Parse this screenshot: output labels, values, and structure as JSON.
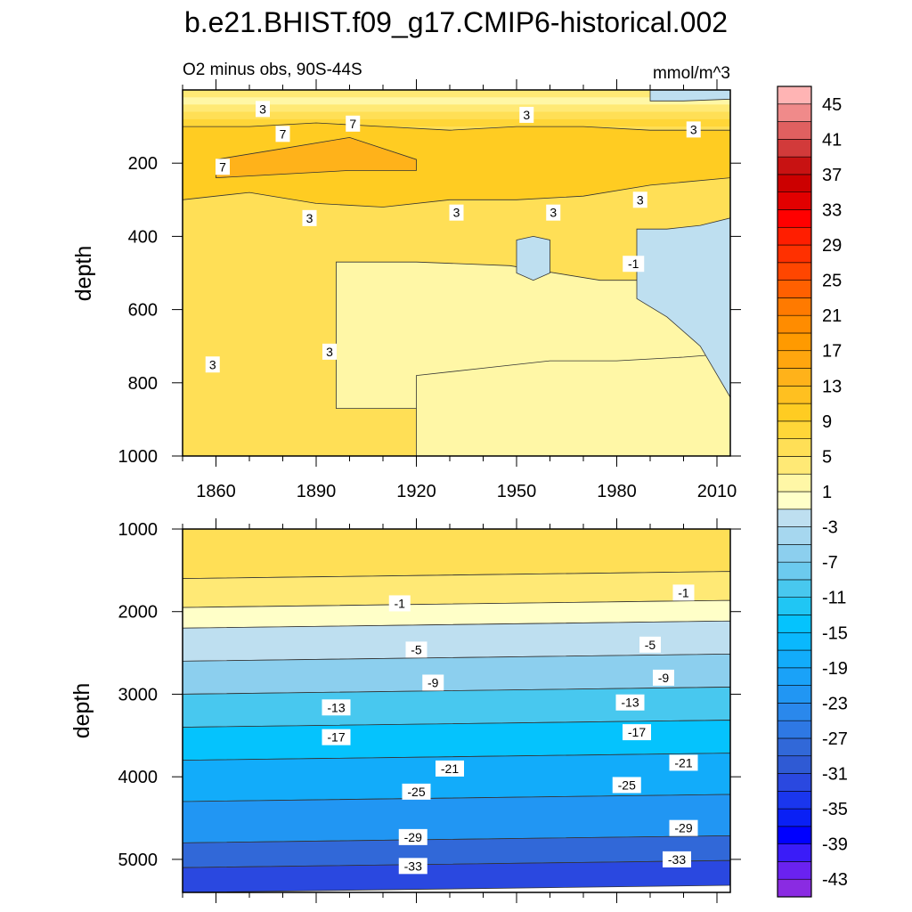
{
  "chart_data": [
    {
      "type": "contour",
      "panel": "upper",
      "title": "b.e21.BHIST.f09_g17.CMIP6-historical.002",
      "subtitle_left": "O2 minus obs, 90S-44S",
      "subtitle_right": "mmol/m^3",
      "ylabel": "depth",
      "xlim": [
        1850,
        2014
      ],
      "ylim": [
        1000,
        0
      ],
      "x_ticks": [
        1860,
        1890,
        1920,
        1950,
        1980,
        2010
      ],
      "y_ticks": [
        200,
        400,
        600,
        800,
        1000
      ],
      "background_level": 5,
      "regions": [
        {
          "level": 1,
          "x": [
            1896,
            1920,
            1948,
            1975,
            2000,
            2014
          ],
          "y_top": [
            470,
            470,
            480,
            520,
            520,
            520
          ],
          "y_bottom": [
            870,
            870,
            870,
            870,
            870,
            1000
          ]
        },
        {
          "level": 1,
          "x": [
            1920,
            1940,
            1960,
            1980,
            2000,
            2014
          ],
          "y_top": [
            780,
            760,
            740,
            740,
            730,
            720
          ],
          "y_bottom": [
            1000,
            1000,
            1000,
            1000,
            1000,
            1000
          ]
        },
        {
          "level": -3,
          "x": [
            1986,
            1995,
            2005,
            2014
          ],
          "y_top": [
            380,
            380,
            370,
            350
          ],
          "y_bottom": [
            570,
            620,
            700,
            840
          ]
        },
        {
          "level": -3,
          "x": [
            1950,
            1955,
            1960
          ],
          "y_top": [
            410,
            400,
            410
          ],
          "y_bottom": [
            500,
            520,
            500
          ]
        },
        {
          "level": -3,
          "x": [
            1990,
            2000,
            2014
          ],
          "y_top": [
            0,
            0,
            0
          ],
          "y_bottom": [
            30,
            30,
            25
          ]
        },
        {
          "level": 9,
          "x": [
            1850,
            1870,
            1890,
            1910,
            1930,
            1950,
            1970,
            1990,
            2014
          ],
          "y_top": [
            100,
            100,
            90,
            100,
            110,
            100,
            100,
            110,
            110
          ],
          "y_bottom": [
            300,
            280,
            310,
            320,
            300,
            300,
            290,
            260,
            240
          ]
        },
        {
          "level": 13,
          "x": [
            1860,
            1880,
            1900,
            1920
          ],
          "y_top": [
            190,
            160,
            130,
            190
          ],
          "y_bottom": [
            240,
            230,
            220,
            220
          ]
        }
      ],
      "contour_labels": [
        {
          "value": "3",
          "x": 1874,
          "y": 52
        },
        {
          "value": "3",
          "x": 1953,
          "y": 68
        },
        {
          "value": "7",
          "x": 1901,
          "y": 92
        },
        {
          "value": "3",
          "x": 2003,
          "y": 108
        },
        {
          "value": "7",
          "x": 1880,
          "y": 120
        },
        {
          "value": "7",
          "x": 1862,
          "y": 210
        },
        {
          "value": "3",
          "x": 1987,
          "y": 300
        },
        {
          "value": "3",
          "x": 1888,
          "y": 350
        },
        {
          "value": "3",
          "x": 1932,
          "y": 335
        },
        {
          "value": "3",
          "x": 1961,
          "y": 335
        },
        {
          "value": "-1",
          "x": 1985,
          "y": 475
        },
        {
          "value": "3",
          "x": 1894,
          "y": 715
        },
        {
          "value": "3",
          "x": 1859,
          "y": 750
        }
      ]
    },
    {
      "type": "contour",
      "panel": "lower",
      "ylabel": "depth",
      "xlim": [
        1850,
        2014
      ],
      "ylim": [
        5400,
        1000
      ],
      "y_ticks": [
        1000,
        2000,
        3000,
        4000,
        5000
      ],
      "profile_depths": [
        1000,
        1600,
        1950,
        2200,
        2600,
        3000,
        3400,
        3800,
        4300,
        4800,
        5100,
        5400
      ],
      "profile_values": [
        5,
        3,
        -1,
        -3,
        -7,
        -11,
        -15,
        -19,
        -23,
        -29,
        -33,
        -35
      ],
      "contour_labels": [
        {
          "value": "-1",
          "x": 1915,
          "y": 1900
        },
        {
          "value": "-1",
          "x": 2000,
          "y": 1770
        },
        {
          "value": "-5",
          "x": 1920,
          "y": 2460
        },
        {
          "value": "-5",
          "x": 1990,
          "y": 2400
        },
        {
          "value": "-9",
          "x": 1925,
          "y": 2860
        },
        {
          "value": "-9",
          "x": 1994,
          "y": 2800
        },
        {
          "value": "-13",
          "x": 1896,
          "y": 3160
        },
        {
          "value": "-13",
          "x": 1984,
          "y": 3100
        },
        {
          "value": "-17",
          "x": 1896,
          "y": 3520
        },
        {
          "value": "-17",
          "x": 1986,
          "y": 3460
        },
        {
          "value": "-21",
          "x": 1930,
          "y": 3900
        },
        {
          "value": "-21",
          "x": 2000,
          "y": 3830
        },
        {
          "value": "-25",
          "x": 1920,
          "y": 4180
        },
        {
          "value": "-25",
          "x": 1983,
          "y": 4100
        },
        {
          "value": "-29",
          "x": 1919,
          "y": 4730
        },
        {
          "value": "-29",
          "x": 2000,
          "y": 4620
        },
        {
          "value": "-33",
          "x": 1919,
          "y": 5080
        },
        {
          "value": "-33",
          "x": 1998,
          "y": 5000
        }
      ]
    }
  ],
  "colorbar": {
    "levels": [
      -45,
      -43,
      -41,
      -39,
      -37,
      -35,
      -33,
      -31,
      -29,
      -27,
      -25,
      -23,
      -21,
      -19,
      -17,
      -15,
      -13,
      -11,
      -9,
      -7,
      -5,
      -3,
      -1,
      1,
      3,
      5,
      7,
      9,
      11,
      13,
      15,
      17,
      19,
      21,
      23,
      25,
      27,
      29,
      31,
      33,
      35,
      37,
      39,
      41,
      43,
      45,
      47
    ],
    "colors": [
      "#8a2be2",
      "#6a22f0",
      "#3a1cf8",
      "#0000ff",
      "#0a20f5",
      "#1a36ee",
      "#2a48e0",
      "#2f5ad4",
      "#3168d8",
      "#2e78e4",
      "#2a88ec",
      "#2196f3",
      "#1aa2f8",
      "#12acfa",
      "#0ab8fd",
      "#05c3fd",
      "#20c6f4",
      "#48c8ef",
      "#6ccaee",
      "#8ccfee",
      "#a6d7ef",
      "#bedff0",
      "#ffffc8",
      "#fff7a6",
      "#ffe975",
      "#ffdf56",
      "#ffd638",
      "#ffcc22",
      "#ffc020",
      "#ffb21a",
      "#ffa60e",
      "#ff9a00",
      "#ff8c00",
      "#ff7a00",
      "#ff6000",
      "#ff4600",
      "#ff3000",
      "#ff1e00",
      "#ff0000",
      "#e20000",
      "#cc0000",
      "#c81212",
      "#d23a3a",
      "#e06060",
      "#f08a8a",
      "#ffb4b4"
    ],
    "labels": [
      "45",
      "41",
      "37",
      "33",
      "29",
      "25",
      "21",
      "17",
      "13",
      "9",
      "5",
      "1",
      "-3",
      "-7",
      "-11",
      "-15",
      "-19",
      "-23",
      "-27",
      "-31",
      "-35",
      "-39",
      "-43"
    ]
  }
}
